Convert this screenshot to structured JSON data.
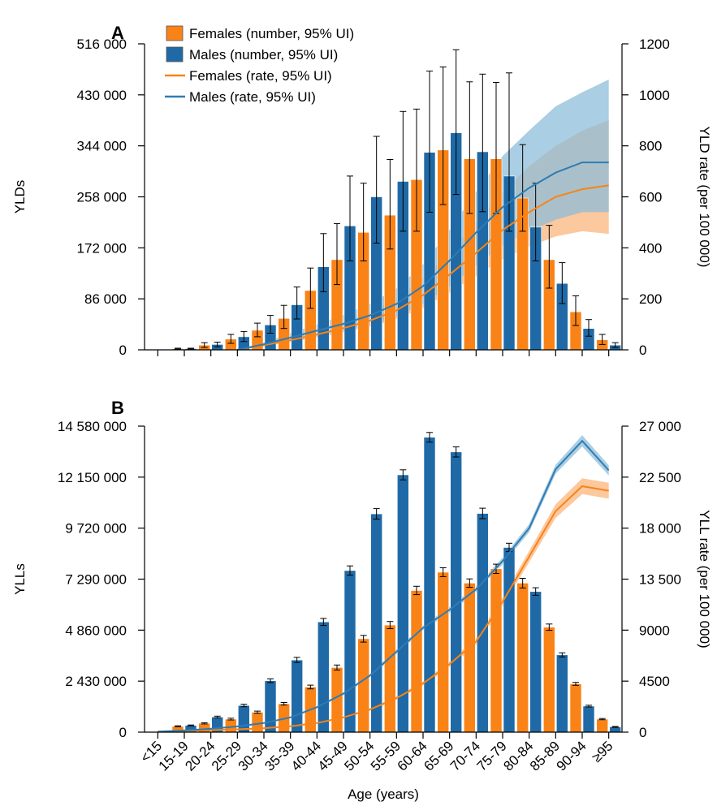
{
  "chart_data": [
    {
      "panel": "A",
      "type": "bar",
      "categories": [
        "<15",
        "15-19",
        "20-24",
        "25-29",
        "30-34",
        "35-39",
        "40-44",
        "45-49",
        "50-54",
        "55-59",
        "60-64",
        "65-69",
        "70-74",
        "75-79",
        "80-84",
        "85-89",
        "90-94",
        "≥95"
      ],
      "ylabel": "YLDs",
      "y2label": "YLD rate (per 100 000)",
      "ylim": [
        0,
        516000
      ],
      "yticks": [
        0,
        86000,
        172000,
        258000,
        344000,
        430000,
        516000
      ],
      "ytick_labels": [
        "0",
        "86 000",
        "172 000",
        "258 000",
        "344 000",
        "430 000",
        "516 000"
      ],
      "y2lim": [
        0,
        1200
      ],
      "y2ticks": [
        0,
        200,
        400,
        600,
        800,
        1000,
        1200
      ],
      "y2tick_labels": [
        "0",
        "200",
        "400",
        "600",
        "800",
        "1000",
        "1200"
      ],
      "series": [
        {
          "name": "Females (number, 95% UI)",
          "kind": "bar",
          "color": "#f98316",
          "values": [
            0,
            2000,
            8000,
            18000,
            33000,
            53000,
            100000,
            152000,
            198000,
            227000,
            287000,
            337000,
            322000,
            322000,
            256000,
            152000,
            64000,
            17000
          ],
          "lower": [
            0,
            1200,
            4000,
            11000,
            22000,
            36000,
            70000,
            110000,
            150000,
            170000,
            200000,
            245000,
            230000,
            230000,
            200000,
            104000,
            41000,
            9000
          ],
          "upper": [
            0,
            2800,
            12000,
            26000,
            45000,
            75000,
            138000,
            213000,
            281000,
            321000,
            406000,
            477000,
            452000,
            451000,
            346000,
            210000,
            91000,
            26000
          ]
        },
        {
          "name": "Males (number, 95% UI)",
          "kind": "bar",
          "color": "#1f6aa6",
          "values": [
            0,
            2000,
            9000,
            22000,
            42000,
            76000,
            140000,
            209000,
            258000,
            284000,
            333000,
            366000,
            334000,
            293000,
            207000,
            112000,
            36000,
            8000
          ],
          "lower": [
            0,
            1200,
            5000,
            14000,
            28000,
            52000,
            98000,
            150000,
            180000,
            200000,
            232000,
            262000,
            233000,
            200000,
            150000,
            78000,
            23000,
            4000
          ],
          "upper": [
            0,
            2800,
            13000,
            31000,
            58000,
            106000,
            196000,
            293000,
            360000,
            402000,
            470000,
            506000,
            465000,
            467000,
            281000,
            147000,
            51000,
            12000
          ]
        },
        {
          "name": "Females (rate, 95% UI)",
          "kind": "line",
          "axis": "right",
          "color": "#f98316",
          "band_color": "#fbb57d",
          "values": [
            null,
            null,
            null,
            0,
            18,
            38,
            60,
            85,
            115,
            155,
            215,
            295,
            380,
            470,
            540,
            600,
            630,
            645
          ],
          "lower": [
            null,
            null,
            null,
            0,
            14,
            30,
            48,
            68,
            90,
            120,
            165,
            225,
            290,
            355,
            405,
            445,
            465,
            455
          ],
          "upper": [
            null,
            null,
            null,
            0,
            24,
            50,
            78,
            110,
            148,
            200,
            280,
            385,
            500,
            620,
            720,
            800,
            860,
            900
          ]
        },
        {
          "name": "Males (rate, 95% UI)",
          "kind": "line",
          "axis": "right",
          "color": "#2f7cb3",
          "band_color": "#8ebed9",
          "values": [
            null,
            null,
            null,
            0,
            22,
            48,
            75,
            102,
            135,
            180,
            250,
            350,
            460,
            560,
            635,
            695,
            735,
            735
          ],
          "lower": [
            null,
            null,
            null,
            0,
            16,
            34,
            52,
            72,
            98,
            130,
            180,
            250,
            330,
            410,
            465,
            510,
            540,
            540
          ],
          "upper": [
            null,
            null,
            null,
            0,
            30,
            65,
            100,
            137,
            180,
            240,
            335,
            470,
            620,
            760,
            860,
            955,
            1010,
            1060
          ]
        }
      ]
    },
    {
      "panel": "B",
      "type": "bar",
      "categories": [
        "<15",
        "15-19",
        "20-24",
        "25-29",
        "30-34",
        "35-39",
        "40-44",
        "45-49",
        "50-54",
        "55-59",
        "60-64",
        "65-69",
        "70-74",
        "75-79",
        "80-84",
        "85-89",
        "90-94",
        "≥95"
      ],
      "xlabel": "Age (years)",
      "ylabel": "YLLs",
      "y2label": "YLL rate (per 100 000)",
      "ylim": [
        0,
        14580000
      ],
      "yticks": [
        0,
        2430000,
        4860000,
        7290000,
        9720000,
        12150000,
        14580000
      ],
      "ytick_labels": [
        "0",
        "2 430 000",
        "4 860 000",
        "7 290 000",
        "9 720 000",
        "12 150 000",
        "14 580 000"
      ],
      "y2lim": [
        0,
        27000
      ],
      "y2ticks": [
        0,
        4500,
        9000,
        13500,
        18000,
        22500,
        27000
      ],
      "y2tick_labels": [
        "0",
        "4500",
        "9000",
        "13 500",
        "18 000",
        "22 500",
        "27 000"
      ],
      "series": [
        {
          "name": "Females (number, 95% UI)",
          "kind": "bar",
          "color": "#f98316",
          "values": [
            0,
            280000,
            420000,
            620000,
            950000,
            1350000,
            2150000,
            3080000,
            4450000,
            5100000,
            6750000,
            7620000,
            7100000,
            7780000,
            7100000,
            5000000,
            2300000,
            620000
          ],
          "lower": [
            0,
            260000,
            390000,
            580000,
            900000,
            1290000,
            2060000,
            2960000,
            4290000,
            4930000,
            6550000,
            7410000,
            6900000,
            7560000,
            6870000,
            4850000,
            2230000,
            590000
          ],
          "upper": [
            0,
            300000,
            450000,
            660000,
            1000000,
            1410000,
            2240000,
            3200000,
            4610000,
            5270000,
            6950000,
            7830000,
            7300000,
            8000000,
            7330000,
            5150000,
            2370000,
            650000
          ]
        },
        {
          "name": "Males (number, 95% UI)",
          "kind": "bar",
          "color": "#1f6aa6",
          "values": [
            0,
            320000,
            720000,
            1270000,
            2450000,
            3440000,
            5250000,
            7700000,
            10400000,
            12260000,
            14050000,
            13350000,
            10420000,
            8800000,
            6700000,
            3680000,
            1240000,
            250000
          ],
          "lower": [
            0,
            300000,
            680000,
            1210000,
            2360000,
            3320000,
            5080000,
            7480000,
            10150000,
            12020000,
            13820000,
            13110000,
            10170000,
            8600000,
            6520000,
            3580000,
            1200000,
            230000
          ],
          "upper": [
            0,
            340000,
            760000,
            1330000,
            2540000,
            3560000,
            5420000,
            7920000,
            10650000,
            12500000,
            14280000,
            13590000,
            10670000,
            9000000,
            6880000,
            3780000,
            1280000,
            270000
          ]
        },
        {
          "name": "Females (rate, 95% UI)",
          "kind": "line",
          "axis": "right",
          "color": "#f98316",
          "band_color": "#fbb57d",
          "values": [
            30,
            100,
            180,
            250,
            350,
            520,
            800,
            1300,
            2000,
            3000,
            4300,
            6000,
            8000,
            11500,
            15500,
            19500,
            21700,
            21300
          ],
          "lower": [
            25,
            90,
            165,
            230,
            320,
            480,
            740,
            1220,
            1880,
            2850,
            4100,
            5750,
            7700,
            11100,
            15000,
            18900,
            21000,
            20600
          ],
          "upper": [
            35,
            110,
            195,
            270,
            380,
            560,
            860,
            1380,
            2120,
            3150,
            4500,
            6250,
            8300,
            11900,
            16000,
            20100,
            22400,
            22000
          ]
        },
        {
          "name": "Males (rate, 95% UI)",
          "kind": "line",
          "axis": "right",
          "color": "#2f7cb3",
          "band_color": "#8ebed9",
          "values": [
            40,
            150,
            300,
            500,
            800,
            1300,
            2200,
            3400,
            5000,
            7100,
            9200,
            10800,
            12600,
            15100,
            18000,
            23200,
            25700,
            23100
          ],
          "lower": [
            35,
            140,
            280,
            470,
            760,
            1240,
            2110,
            3280,
            4840,
            6900,
            8980,
            10550,
            12330,
            14800,
            17650,
            22800,
            25200,
            22650
          ],
          "upper": [
            45,
            160,
            320,
            530,
            840,
            1360,
            2290,
            3520,
            5160,
            7300,
            9420,
            11050,
            12870,
            15400,
            18350,
            23600,
            26200,
            23550
          ]
        }
      ]
    }
  ],
  "legend": [
    {
      "label": "Females (number, 95% UI)",
      "kind": "box",
      "color": "#f98316"
    },
    {
      "label": "Males (number, 95% UI)",
      "kind": "box",
      "color": "#1f6aa6"
    },
    {
      "label": "Females (rate, 95% UI)",
      "kind": "line",
      "color": "#f98316"
    },
    {
      "label": "Males (rate, 95% UI)",
      "kind": "line",
      "color": "#2f7cb3"
    }
  ]
}
